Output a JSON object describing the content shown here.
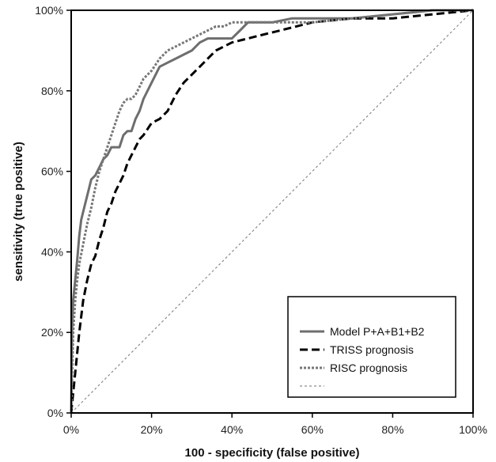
{
  "chart_data": {
    "type": "line",
    "title": "",
    "xlabel": "100 - specificity (false positive)",
    "ylabel": "sensitivity (true positive)",
    "xlim": [
      0,
      100
    ],
    "ylim": [
      0,
      100
    ],
    "x_ticks": [
      "0%",
      "20%",
      "40%",
      "60%",
      "80%",
      "100%"
    ],
    "y_ticks": [
      "0%",
      "20%",
      "40%",
      "60%",
      "80%",
      "100%"
    ],
    "grid": false,
    "legend_position": "bottom-right",
    "series": [
      {
        "name": "Model P+A+B1+B2",
        "color": "#6e6e6e",
        "style": "solid",
        "x": [
          0,
          0.2,
          0.5,
          1,
          1.5,
          2,
          2.5,
          3,
          4,
          5,
          6,
          7,
          8,
          9,
          10,
          11,
          12,
          13,
          14,
          15,
          16,
          17,
          18,
          20,
          22,
          24,
          26,
          28,
          30,
          32,
          34,
          36,
          38,
          40,
          42,
          44,
          50,
          55,
          60,
          70,
          80,
          90,
          100
        ],
        "y": [
          0,
          20,
          28,
          33,
          38,
          44,
          48,
          50,
          54,
          58,
          59,
          61,
          63,
          64,
          66,
          66,
          66,
          69,
          70,
          70,
          73,
          75,
          78,
          82,
          86,
          87,
          88,
          89,
          90,
          92,
          93,
          93,
          93,
          93,
          95,
          97,
          97,
          98,
          98,
          98,
          99,
          100,
          100
        ]
      },
      {
        "name": "TRISS prognosis",
        "color": "#000000",
        "style": "dashed",
        "x": [
          0,
          0.5,
          1,
          2,
          3,
          4,
          5,
          6,
          7,
          8,
          9,
          10,
          11,
          12,
          13,
          14,
          15,
          16,
          17,
          18,
          20,
          22,
          24,
          26,
          28,
          30,
          32,
          34,
          36,
          38,
          40,
          44,
          48,
          52,
          56,
          60,
          70,
          80,
          90,
          100
        ],
        "y": [
          0,
          5,
          10,
          20,
          28,
          33,
          37,
          39,
          43,
          46,
          50,
          52,
          55,
          57,
          59,
          62,
          64,
          66,
          68,
          69,
          72,
          73,
          75,
          79,
          82,
          84,
          86,
          88,
          90,
          91,
          92,
          93,
          94,
          95,
          96,
          97,
          98,
          98,
          99,
          100
        ]
      },
      {
        "name": "RISC prognosis",
        "color": "#777777",
        "style": "dotted",
        "x": [
          0,
          0.3,
          0.5,
          1,
          1.5,
          2,
          3,
          4,
          5,
          6,
          7,
          8,
          9,
          10,
          11,
          12,
          13,
          14,
          15,
          16,
          17,
          18,
          20,
          22,
          24,
          26,
          28,
          30,
          32,
          34,
          36,
          38,
          40,
          45,
          50,
          60,
          70,
          80,
          90,
          100
        ],
        "y": [
          0,
          12,
          20,
          28,
          33,
          37,
          42,
          47,
          51,
          56,
          60,
          63,
          66,
          69,
          72,
          75,
          77,
          78,
          78,
          79,
          81,
          83,
          85,
          88,
          90,
          91,
          92,
          93,
          94,
          95,
          96,
          96,
          97,
          97,
          97,
          97,
          98,
          99,
          100,
          100
        ]
      },
      {
        "name": "",
        "color": "#8c8c8c",
        "style": "reference",
        "x": [
          0,
          100
        ],
        "y": [
          0,
          100
        ]
      }
    ]
  }
}
